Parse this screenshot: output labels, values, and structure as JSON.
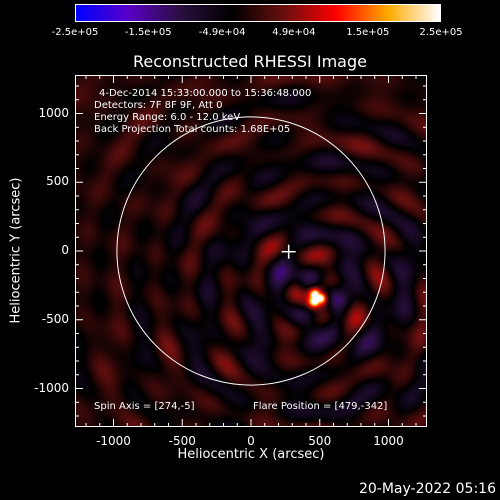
{
  "colors": {
    "background": "#000000",
    "foreground": "#ffffff",
    "colormap": [
      "#0000ff",
      "#5a00c8",
      "#2a1040",
      "#000000",
      "#6a1010",
      "#ff0000",
      "#ffaa00",
      "#ffffff"
    ]
  },
  "colorbar": {
    "tick_labels": [
      "-2.5e+05",
      "-1.5e+05",
      "-4.9e+04",
      "4.9e+04",
      "1.5e+05",
      "2.5e+05"
    ],
    "values": [
      -250000,
      -150000,
      -49000,
      49000,
      150000,
      250000
    ],
    "range": [
      -250000,
      250000
    ]
  },
  "title": "Reconstructed RHESSI Image",
  "axes": {
    "xlabel": "Heliocentric X (arcsec)",
    "ylabel": "Heliocentric Y (arcsec)",
    "xticks": [
      "-1000",
      "-500",
      "0",
      "500",
      "1000"
    ],
    "yticks": [
      "1000",
      "500",
      "0",
      "-500",
      "-1000"
    ],
    "xtick_values": [
      -1000,
      -500,
      0,
      500,
      1000
    ],
    "ytick_values": [
      1000,
      500,
      0,
      -500,
      -1000
    ],
    "xlim": [
      -1280,
      1280
    ],
    "ylim": [
      -1280,
      1280
    ]
  },
  "annotations": {
    "time": "4-Dec-2014 15:33:00.000 to 15:36:48.000",
    "detectors": "Detectors: 7F 8F 9F, Att 0",
    "energy": "Energy Range: 6.0 - 12.0 keV",
    "method": "Back Projection     Total counts: 1.68E+05",
    "spin_axis": "Spin Axis = [274,-5]",
    "flare_position": "Flare Position = [479,-342]"
  },
  "image_features": {
    "solar_limb_radius_arcsec": 975,
    "spin_axis_xy": [
      274,
      -5
    ],
    "flare_xy": [
      479,
      -342
    ]
  },
  "footer": {
    "timestamp": "20-May-2022 05:16"
  }
}
